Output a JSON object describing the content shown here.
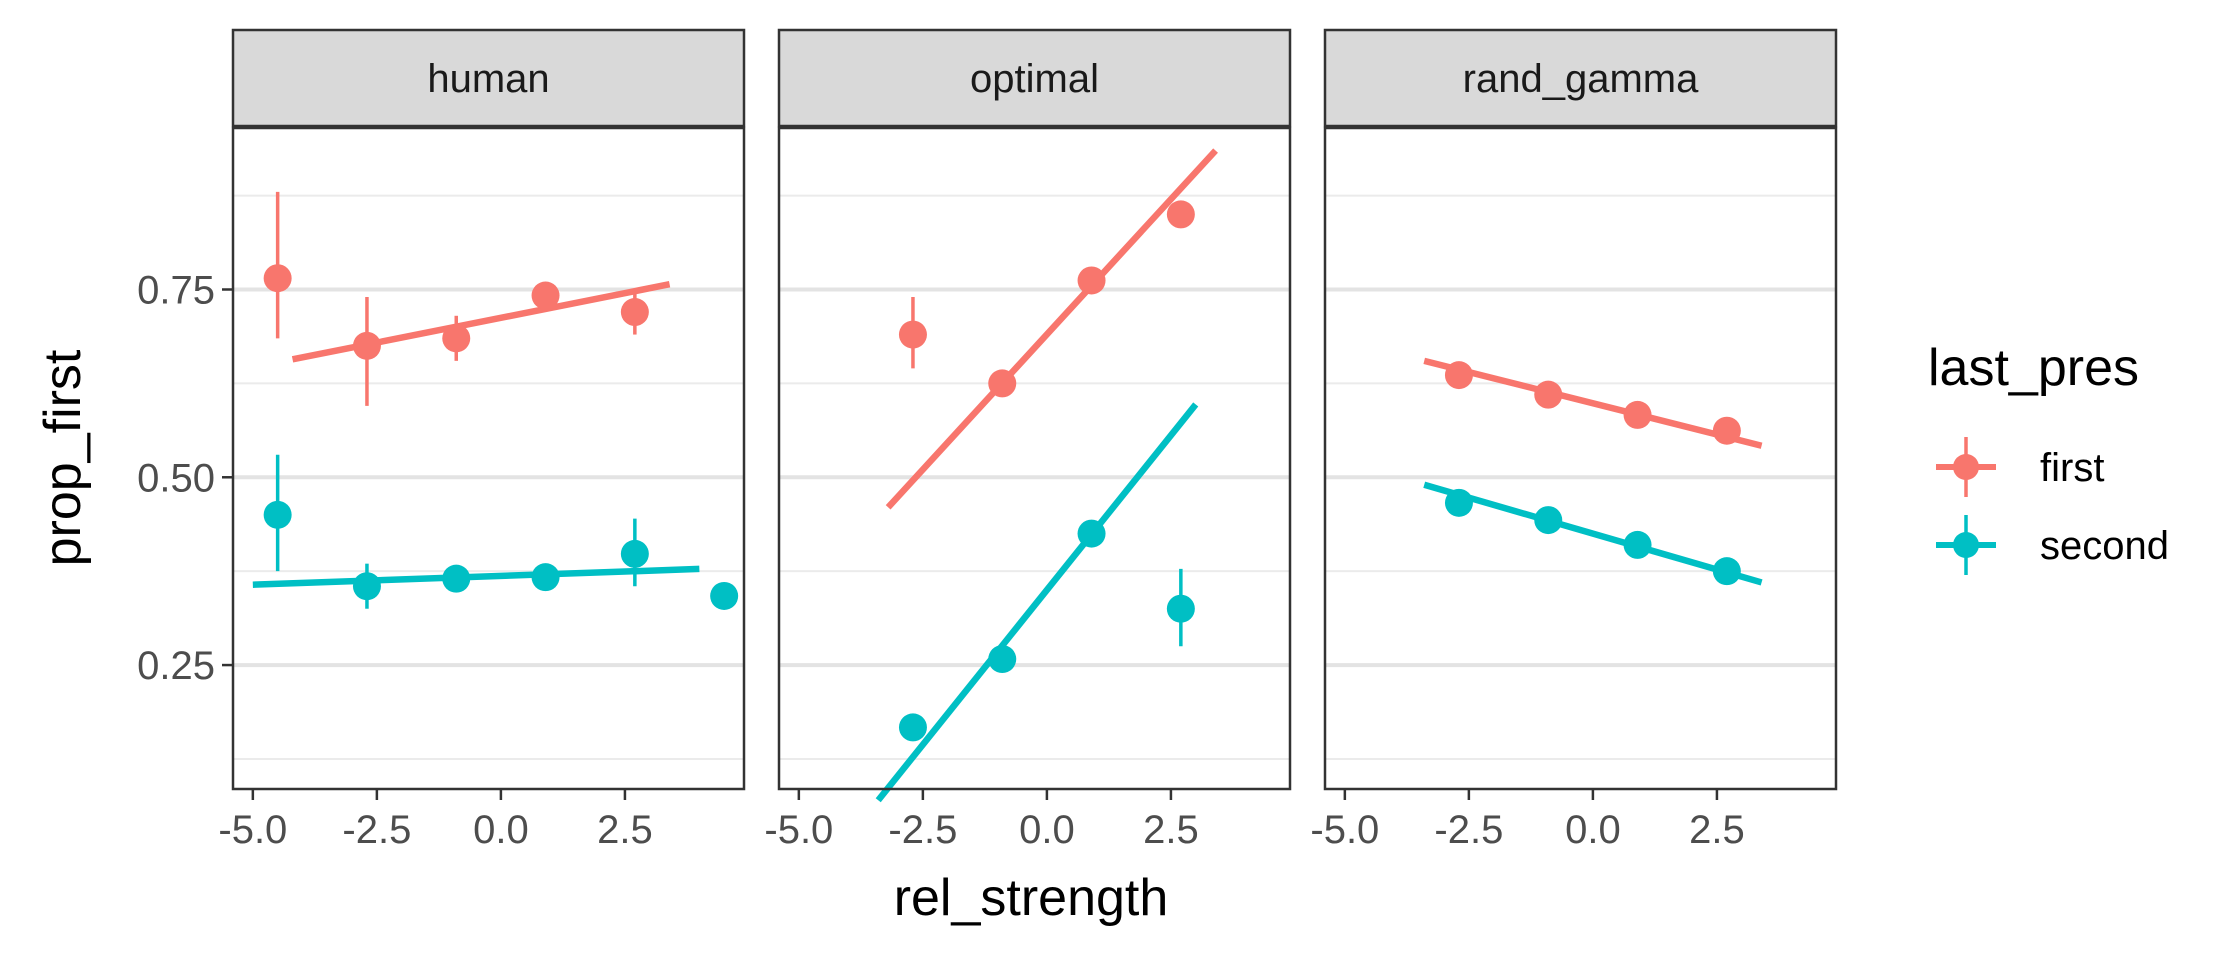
{
  "chart_data": {
    "type": "scatter",
    "facet_variable": "panel",
    "xlabel": "rel_strength",
    "ylabel": "prop_first",
    "x_ticks": [
      -5.0,
      -2.5,
      0.0,
      2.5
    ],
    "x_tick_labels": [
      "-5.0",
      "-2.5",
      "0.0",
      "2.5"
    ],
    "y_ticks": [
      0.25,
      0.5,
      0.75
    ],
    "y_tick_labels": [
      "0.25",
      "0.50",
      "0.75"
    ],
    "xlim": [
      -5.4,
      4.9
    ],
    "ylim": [
      0.085,
      0.965
    ],
    "grid": true,
    "legend": {
      "title": "last_pres",
      "position": "right",
      "entries": [
        {
          "label": "first",
          "color": "#F8766D"
        },
        {
          "label": "second",
          "color": "#00BFC4"
        }
      ]
    },
    "panels": [
      {
        "title": "human",
        "series": [
          {
            "name": "first",
            "color": "#F8766D",
            "x": [
              -4.5,
              -2.7,
              -0.9,
              0.9,
              2.7
            ],
            "y": [
              0.765,
              0.675,
              0.685,
              0.742,
              0.72
            ],
            "err_low": [
              0.685,
              0.595,
              0.655,
              0.735,
              0.69
            ],
            "err_high": [
              0.88,
              0.74,
              0.715,
              0.748,
              0.745
            ],
            "fit": {
              "x": [
                -4.2,
                3.4
              ],
              "y": [
                0.657,
                0.757
              ]
            }
          },
          {
            "name": "second",
            "color": "#00BFC4",
            "x": [
              -4.5,
              -2.7,
              -0.9,
              0.9,
              2.7,
              4.5
            ],
            "y": [
              0.45,
              0.355,
              0.365,
              0.367,
              0.398,
              0.342
            ],
            "err_low": [
              0.375,
              0.325,
              0.355,
              0.36,
              0.355,
              0.335
            ],
            "err_high": [
              0.53,
              0.385,
              0.375,
              0.375,
              0.445,
              0.35
            ],
            "fit": {
              "x": [
                -5.0,
                4.0
              ],
              "y": [
                0.357,
                0.378
              ]
            }
          }
        ]
      },
      {
        "title": "optimal",
        "series": [
          {
            "name": "first",
            "color": "#F8766D",
            "x": [
              -2.7,
              -0.9,
              0.9,
              2.7
            ],
            "y": [
              0.69,
              0.625,
              0.762,
              0.85
            ],
            "err_low": [
              0.645,
              0.618,
              0.755,
              0.845
            ],
            "err_high": [
              0.74,
              0.632,
              0.77,
              0.855
            ],
            "fit": {
              "x": [
                -3.2,
                3.4
              ],
              "y": [
                0.46,
                0.935
              ]
            }
          },
          {
            "name": "second",
            "color": "#00BFC4",
            "x": [
              -2.7,
              -0.9,
              0.9,
              2.7
            ],
            "y": [
              0.167,
              0.258,
              0.425,
              0.325
            ],
            "err_low": [
              0.16,
              0.25,
              0.418,
              0.275
            ],
            "err_high": [
              0.175,
              0.265,
              0.432,
              0.378
            ],
            "fit": {
              "x": [
                -3.4,
                3.0
              ],
              "y": [
                0.07,
                0.597
              ]
            }
          }
        ]
      },
      {
        "title": "rand_gamma",
        "series": [
          {
            "name": "first",
            "color": "#F8766D",
            "x": [
              -2.7,
              -0.9,
              0.9,
              2.7
            ],
            "y": [
              0.636,
              0.61,
              0.583,
              0.562
            ],
            "err_low": [
              0.632,
              0.606,
              0.579,
              0.558
            ],
            "err_high": [
              0.64,
              0.614,
              0.587,
              0.566
            ],
            "fit": {
              "x": [
                -3.4,
                3.4
              ],
              "y": [
                0.655,
                0.542
              ]
            }
          },
          {
            "name": "second",
            "color": "#00BFC4",
            "x": [
              -2.7,
              -0.9,
              0.9,
              2.7
            ],
            "y": [
              0.466,
              0.443,
              0.41,
              0.375
            ],
            "err_low": [
              0.462,
              0.439,
              0.406,
              0.371
            ],
            "err_high": [
              0.47,
              0.447,
              0.414,
              0.379
            ],
            "fit": {
              "x": [
                -3.4,
                3.4
              ],
              "y": [
                0.49,
                0.36
              ]
            }
          }
        ]
      }
    ]
  }
}
